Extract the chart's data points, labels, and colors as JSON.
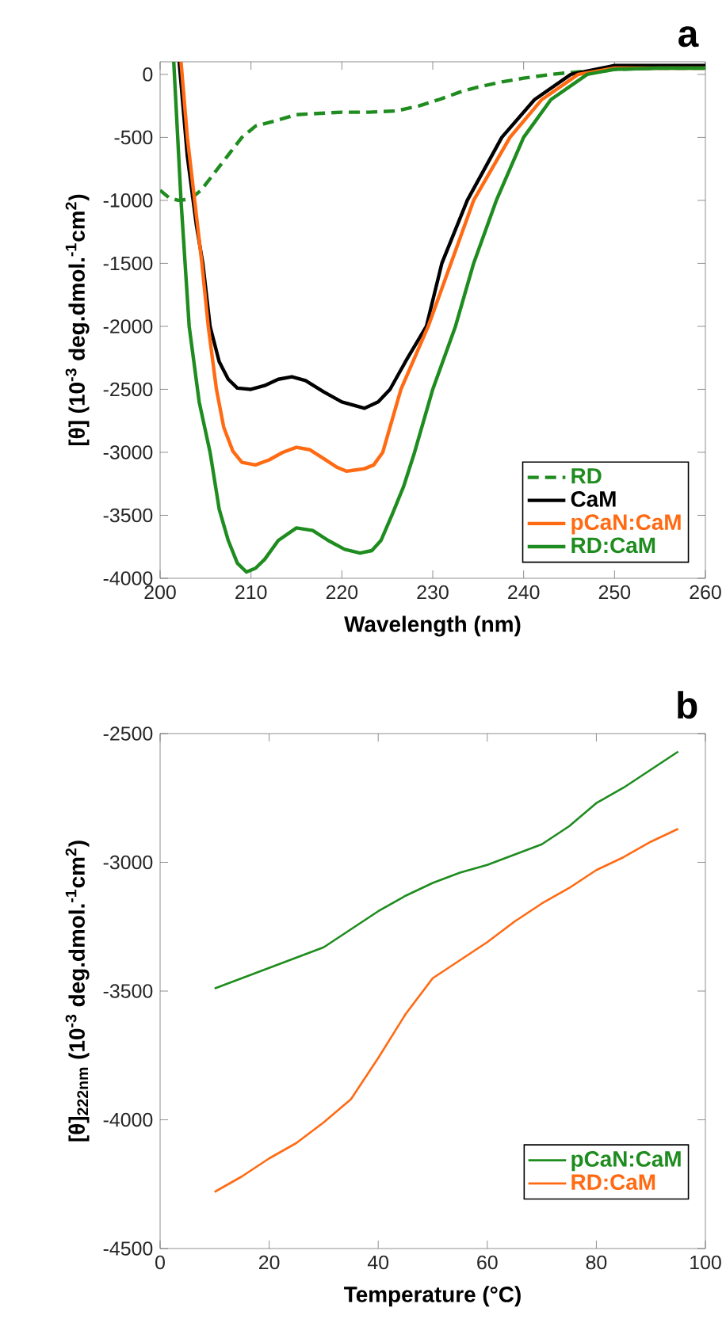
{
  "chart_data": [
    {
      "type": "line",
      "title": "a",
      "xlabel": "Wavelength (nm)",
      "ylabel": "[θ] (10$^{-3}$ deg.dmol.$^{-1}$cm$^{2}$)",
      "xlim": [
        200,
        260
      ],
      "ylim": [
        -4000,
        100
      ],
      "xticks": [
        200,
        210,
        220,
        230,
        240,
        250,
        260
      ],
      "yticks": [
        -4000,
        -3500,
        -3000,
        -2500,
        -2000,
        -1500,
        -1000,
        -500,
        0
      ],
      "legend": "bottom right",
      "series": [
        {
          "name": "RD",
          "color": "#1e8c1e",
          "line_style": "dashed",
          "x": [
            200,
            201,
            202,
            203.3,
            204.5,
            206,
            207.5,
            209,
            210.5,
            212.6,
            215,
            217.3,
            220,
            223,
            226,
            228.5,
            230.7,
            233,
            235,
            237.6,
            240,
            243,
            246,
            250,
            255,
            260
          ],
          "values": [
            -920,
            -980,
            -1000,
            -990,
            -920,
            -780,
            -640,
            -500,
            -410,
            -370,
            -320,
            -310,
            -300,
            -300,
            -290,
            -250,
            -200,
            -140,
            -100,
            -60,
            -30,
            0,
            20,
            40,
            50,
            50
          ]
        },
        {
          "name": "CaM",
          "color": "#000000",
          "x": [
            202.1,
            203,
            204,
            204.7,
            205.5,
            206.5,
            207.5,
            208.5,
            210,
            211.5,
            213,
            214.5,
            216,
            218,
            220,
            222.5,
            224,
            225.3,
            227,
            229.3,
            231,
            233.8,
            237.6,
            241.2,
            245.2,
            250,
            255,
            260
          ],
          "values": [
            100,
            -650,
            -1200,
            -1500,
            -2000,
            -2280,
            -2420,
            -2490,
            -2500,
            -2470,
            -2420,
            -2400,
            -2430,
            -2520,
            -2600,
            -2650,
            -2600,
            -2500,
            -2280,
            -2000,
            -1500,
            -1000,
            -500,
            -200,
            0,
            70,
            70,
            70
          ]
        },
        {
          "name": "pCaN:CaM",
          "color": "#ff6a13",
          "x": [
            202.3,
            203,
            203.8,
            204.6,
            205.3,
            206.2,
            207,
            208,
            209,
            210.5,
            212,
            213.5,
            215,
            216.5,
            218,
            219.5,
            220.5,
            221.5,
            222.5,
            223.5,
            224.5,
            226.5,
            229.5,
            232,
            234.5,
            238.5,
            242,
            246,
            250,
            255,
            260
          ],
          "values": [
            100,
            -500,
            -1000,
            -1500,
            -2000,
            -2500,
            -2800,
            -2990,
            -3080,
            -3100,
            -3060,
            -3000,
            -2960,
            -2980,
            -3050,
            -3120,
            -3150,
            -3140,
            -3130,
            -3100,
            -3000,
            -2500,
            -2000,
            -1500,
            -1000,
            -500,
            -200,
            0,
            50,
            50,
            50
          ]
        },
        {
          "name": "RD:CaM",
          "color": "#1e8c1e",
          "x": [
            201.5,
            202.3,
            203.2,
            204.3,
            205.5,
            206.5,
            207.5,
            208.5,
            209.5,
            210.5,
            211.5,
            213,
            215,
            216.8,
            218.5,
            220.3,
            222,
            223.3,
            224.3,
            225.5,
            226.8,
            228,
            230,
            232.5,
            234.5,
            237,
            240,
            243,
            247,
            250,
            255,
            260
          ],
          "values": [
            100,
            -1000,
            -2000,
            -2600,
            -3000,
            -3450,
            -3700,
            -3880,
            -3950,
            -3920,
            -3850,
            -3700,
            -3600,
            -3620,
            -3700,
            -3770,
            -3800,
            -3780,
            -3700,
            -3500,
            -3270,
            -3000,
            -2500,
            -2000,
            -1500,
            -1000,
            -500,
            -200,
            0,
            40,
            50,
            50
          ]
        }
      ]
    },
    {
      "type": "line",
      "title": "b",
      "xlabel": "Temperature (°C)",
      "ylabel": "[θ]$_{222nm}$ (10$^{-3}$ deg.dmol.$^{-1}$cm$^{2}$)",
      "xlim": [
        0,
        100
      ],
      "ylim": [
        -4500,
        -2500
      ],
      "xticks": [
        0,
        20,
        40,
        60,
        80,
        100
      ],
      "yticks": [
        -4500,
        -4000,
        -3500,
        -3000,
        -2500
      ],
      "legend": "bottom right",
      "series": [
        {
          "name": "pCaN:CaM",
          "color": "#1e8c1e",
          "x": [
            10,
            15,
            20,
            25,
            30,
            35,
            40,
            45,
            50,
            55,
            60,
            65,
            70,
            75,
            80,
            85,
            90,
            95
          ],
          "values": [
            -3490,
            -3450,
            -3410,
            -3370,
            -3330,
            -3260,
            -3190,
            -3130,
            -3080,
            -3040,
            -3010,
            -2970,
            -2930,
            -2860,
            -2770,
            -2710,
            -2640,
            -2570
          ]
        },
        {
          "name": "RD:CaM",
          "color": "#ff6a13",
          "x": [
            10,
            15,
            20,
            25,
            30,
            35,
            40,
            45,
            50,
            55,
            60,
            65,
            70,
            75,
            80,
            85,
            90,
            95
          ],
          "values": [
            -4280,
            -4220,
            -4150,
            -4090,
            -4010,
            -3920,
            -3760,
            -3590,
            -3450,
            -3380,
            -3310,
            -3230,
            -3160,
            -3100,
            -3030,
            -2980,
            -2920,
            -2870
          ]
        }
      ]
    }
  ]
}
